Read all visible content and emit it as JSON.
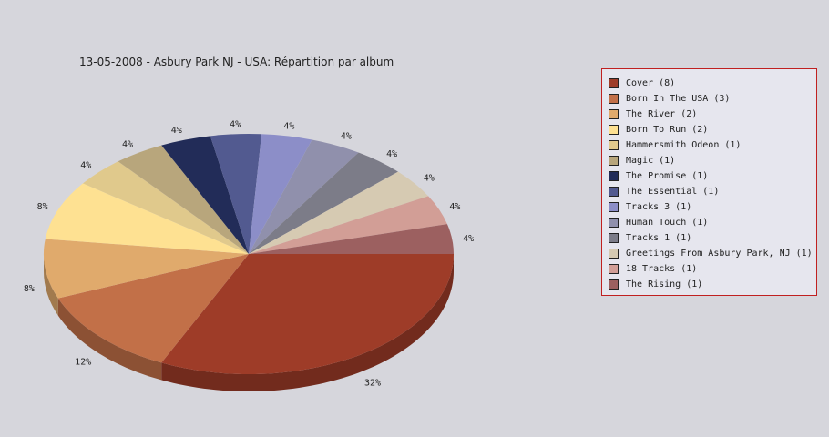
{
  "chart_data": {
    "type": "pie",
    "title": "13-05-2008 - Asbury Park NJ - USA:  Répartition par album",
    "legend_position": "right",
    "slices": [
      {
        "label": "Cover (8)",
        "value": 8,
        "pct_label": "32%",
        "color": "#9e3c28"
      },
      {
        "label": "Born In The USA (3)",
        "value": 3,
        "pct_label": "12%",
        "color": "#c27048"
      },
      {
        "label": "The River (2)",
        "value": 2,
        "pct_label": "8%",
        "color": "#e0aa6c"
      },
      {
        "label": "Born To Run (2)",
        "value": 2,
        "pct_label": "8%",
        "color": "#fee192"
      },
      {
        "label": "Hammersmith Odeon  (1)",
        "value": 1,
        "pct_label": "4%",
        "color": "#e0c98c"
      },
      {
        "label": "Magic (1)",
        "value": 1,
        "pct_label": "4%",
        "color": "#b8a67c"
      },
      {
        "label": "The Promise (1)",
        "value": 1,
        "pct_label": "4%",
        "color": "#222c58"
      },
      {
        "label": "The Essential (1)",
        "value": 1,
        "pct_label": "4%",
        "color": "#525a90"
      },
      {
        "label": "Tracks 3 (1)",
        "value": 1,
        "pct_label": "4%",
        "color": "#8c8ec8"
      },
      {
        "label": "Human Touch (1)",
        "value": 1,
        "pct_label": "4%",
        "color": "#9090ac"
      },
      {
        "label": "Tracks 1 (1)",
        "value": 1,
        "pct_label": "4%",
        "color": "#7c7c88"
      },
      {
        "label": "Greetings From Asbury Park, NJ (1)",
        "value": 1,
        "pct_label": "4%",
        "color": "#d6cab2"
      },
      {
        "label": "18 Tracks (1)",
        "value": 1,
        "pct_label": "4%",
        "color": "#d29e96"
      },
      {
        "label": "The Rising (1)",
        "value": 1,
        "pct_label": "4%",
        "color": "#9c6060"
      }
    ]
  }
}
